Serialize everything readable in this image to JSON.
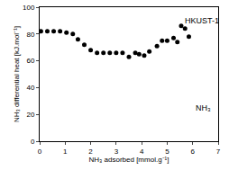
{
  "chart_data": {
    "type": "scatter",
    "x_label": "NH₃ adsorbed [mmol.g⁻¹]",
    "y_label": "NH₃ differential heat [kJ.mol⁻¹]",
    "x": [
      0.05,
      0.3,
      0.55,
      0.8,
      1.05,
      1.3,
      1.5,
      1.75,
      2.0,
      2.25,
      2.5,
      2.75,
      3.0,
      3.25,
      3.5,
      3.75,
      3.9,
      4.1,
      4.3,
      4.6,
      4.8,
      5.0,
      5.25,
      5.4,
      5.55,
      5.7,
      5.85
    ],
    "values": [
      82,
      82,
      82,
      82,
      81,
      80,
      76,
      72,
      68,
      66,
      66,
      66,
      66,
      66,
      63,
      66,
      65,
      64,
      67,
      71,
      75,
      75,
      77,
      74,
      86,
      84,
      78
    ],
    "color": "#000000",
    "marker": "circle",
    "xlim": [
      0,
      7
    ],
    "xticks": [
      0,
      1,
      2,
      3,
      4,
      5,
      6,
      7
    ],
    "ylim": [
      0,
      100
    ],
    "yticks": [
      0,
      20,
      40,
      60,
      80,
      100
    ],
    "grid": false,
    "annotations": [
      "HKUST-1",
      "NH₃"
    ]
  }
}
